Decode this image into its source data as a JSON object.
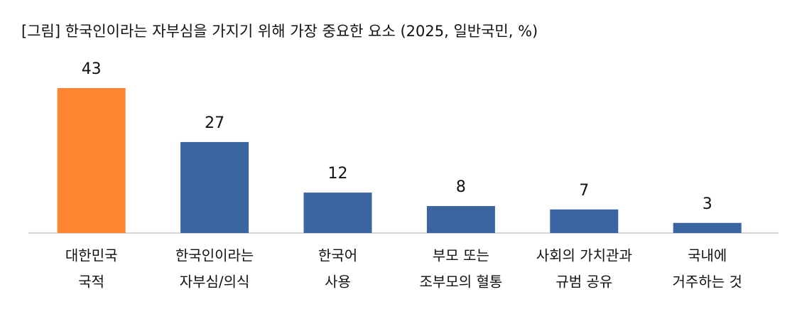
{
  "chart_data": {
    "type": "bar",
    "title": "[그림] 한국인이라는 자부심을 가지기 위해 가장 중요한 요소 (2025, 일반국민, %)",
    "categories": [
      [
        "대한민국",
        "국적"
      ],
      [
        "한국인이라는",
        "자부심/의식"
      ],
      [
        "한국어",
        "사용"
      ],
      [
        "부모 또는",
        "조부모의 혈통"
      ],
      [
        "사회의 가치관과",
        "규범 공유"
      ],
      [
        "국내에",
        "거주하는 것"
      ]
    ],
    "values": [
      43,
      27,
      12,
      8,
      7,
      3
    ],
    "colors": [
      "#ff8533",
      "#3a65a0",
      "#3a65a0",
      "#3a65a0",
      "#3a65a0",
      "#3a65a0"
    ]
  }
}
